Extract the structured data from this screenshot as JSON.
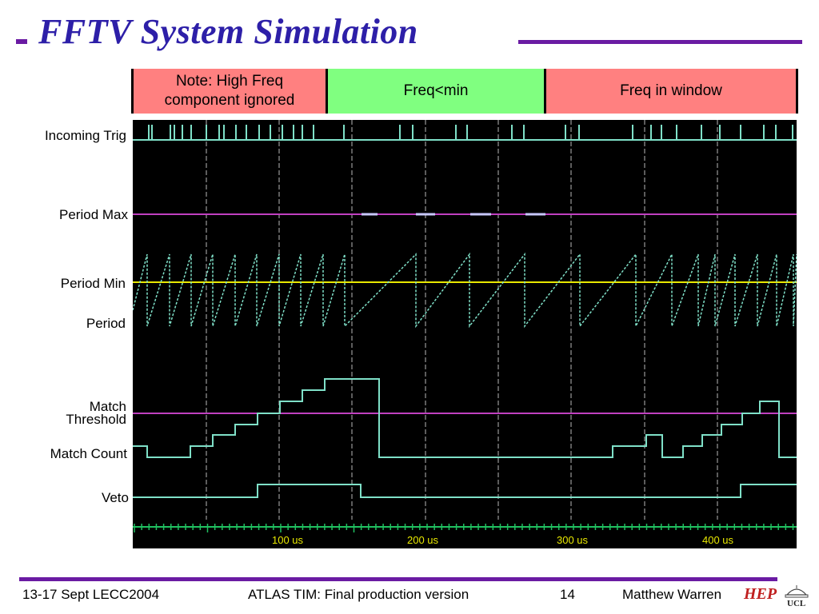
{
  "title": "FFTV System Simulation",
  "bands": [
    {
      "label": "Note: High Freq component ignored"
    },
    {
      "label": "Freq<min"
    },
    {
      "label": "Freq in window"
    }
  ],
  "signals": {
    "incoming_trig": "Incoming Trig",
    "period_max": "Period Max",
    "period_min": "Period Min",
    "period": "Period",
    "match_threshold_1": "Match",
    "match_threshold_2": "Threshold",
    "match_count": "Match Count",
    "veto": "Veto"
  },
  "time_axis": {
    "ticks": [
      "100 us",
      "200 us",
      "300 us",
      "400 us"
    ]
  },
  "colors": {
    "accent": "#6a1ba3",
    "title": "#2d1fa8",
    "trace": "#7fe0c8",
    "period_min_line": "#e8e800",
    "threshold_line": "#c040c0",
    "band_red": "#ff8080",
    "band_green": "#80ff80"
  },
  "footer": {
    "date": "13-17 Sept  LECC2004",
    "talk": "ATLAS TIM: Final production version",
    "page": "14",
    "author": "Matthew Warren",
    "logo_hep": "HEP",
    "logo_ucl": "UCL"
  }
}
